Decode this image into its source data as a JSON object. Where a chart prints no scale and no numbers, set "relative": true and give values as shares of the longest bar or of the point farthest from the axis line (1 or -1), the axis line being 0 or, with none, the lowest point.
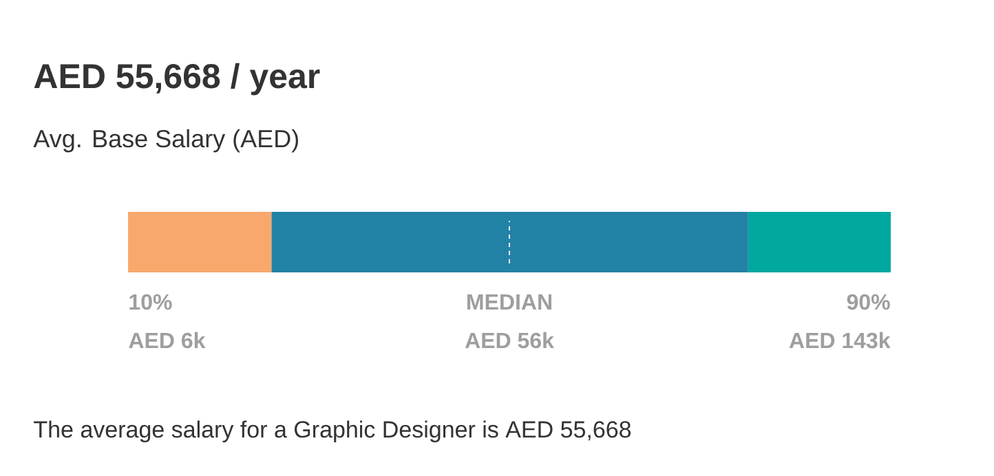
{
  "chart_data": {
    "type": "bar",
    "orientation": "horizontal",
    "stacked": true,
    "relative": true,
    "title": "AED 55,668 / year",
    "subtitle": "Avg. Base Salary (AED)",
    "categories": [
      null
    ],
    "series": [
      {
        "color": "#f8a86c",
        "values": [
          0.188
        ]
      },
      {
        "color": "#2282a6",
        "values": [
          0.625
        ]
      },
      {
        "color": "#00a8a0",
        "values": [
          0.187
        ]
      }
    ],
    "ref_lines": [
      {
        "axis": "x",
        "value": 0.5,
        "color": "#ffffff",
        "line_style": "dashed"
      }
    ],
    "annotations": [
      "10%",
      "AED 6k",
      "MEDIAN",
      "AED 56k",
      "90%",
      "AED 143k",
      "The average salary for a Graphic Designer is AED 55,668"
    ]
  }
}
